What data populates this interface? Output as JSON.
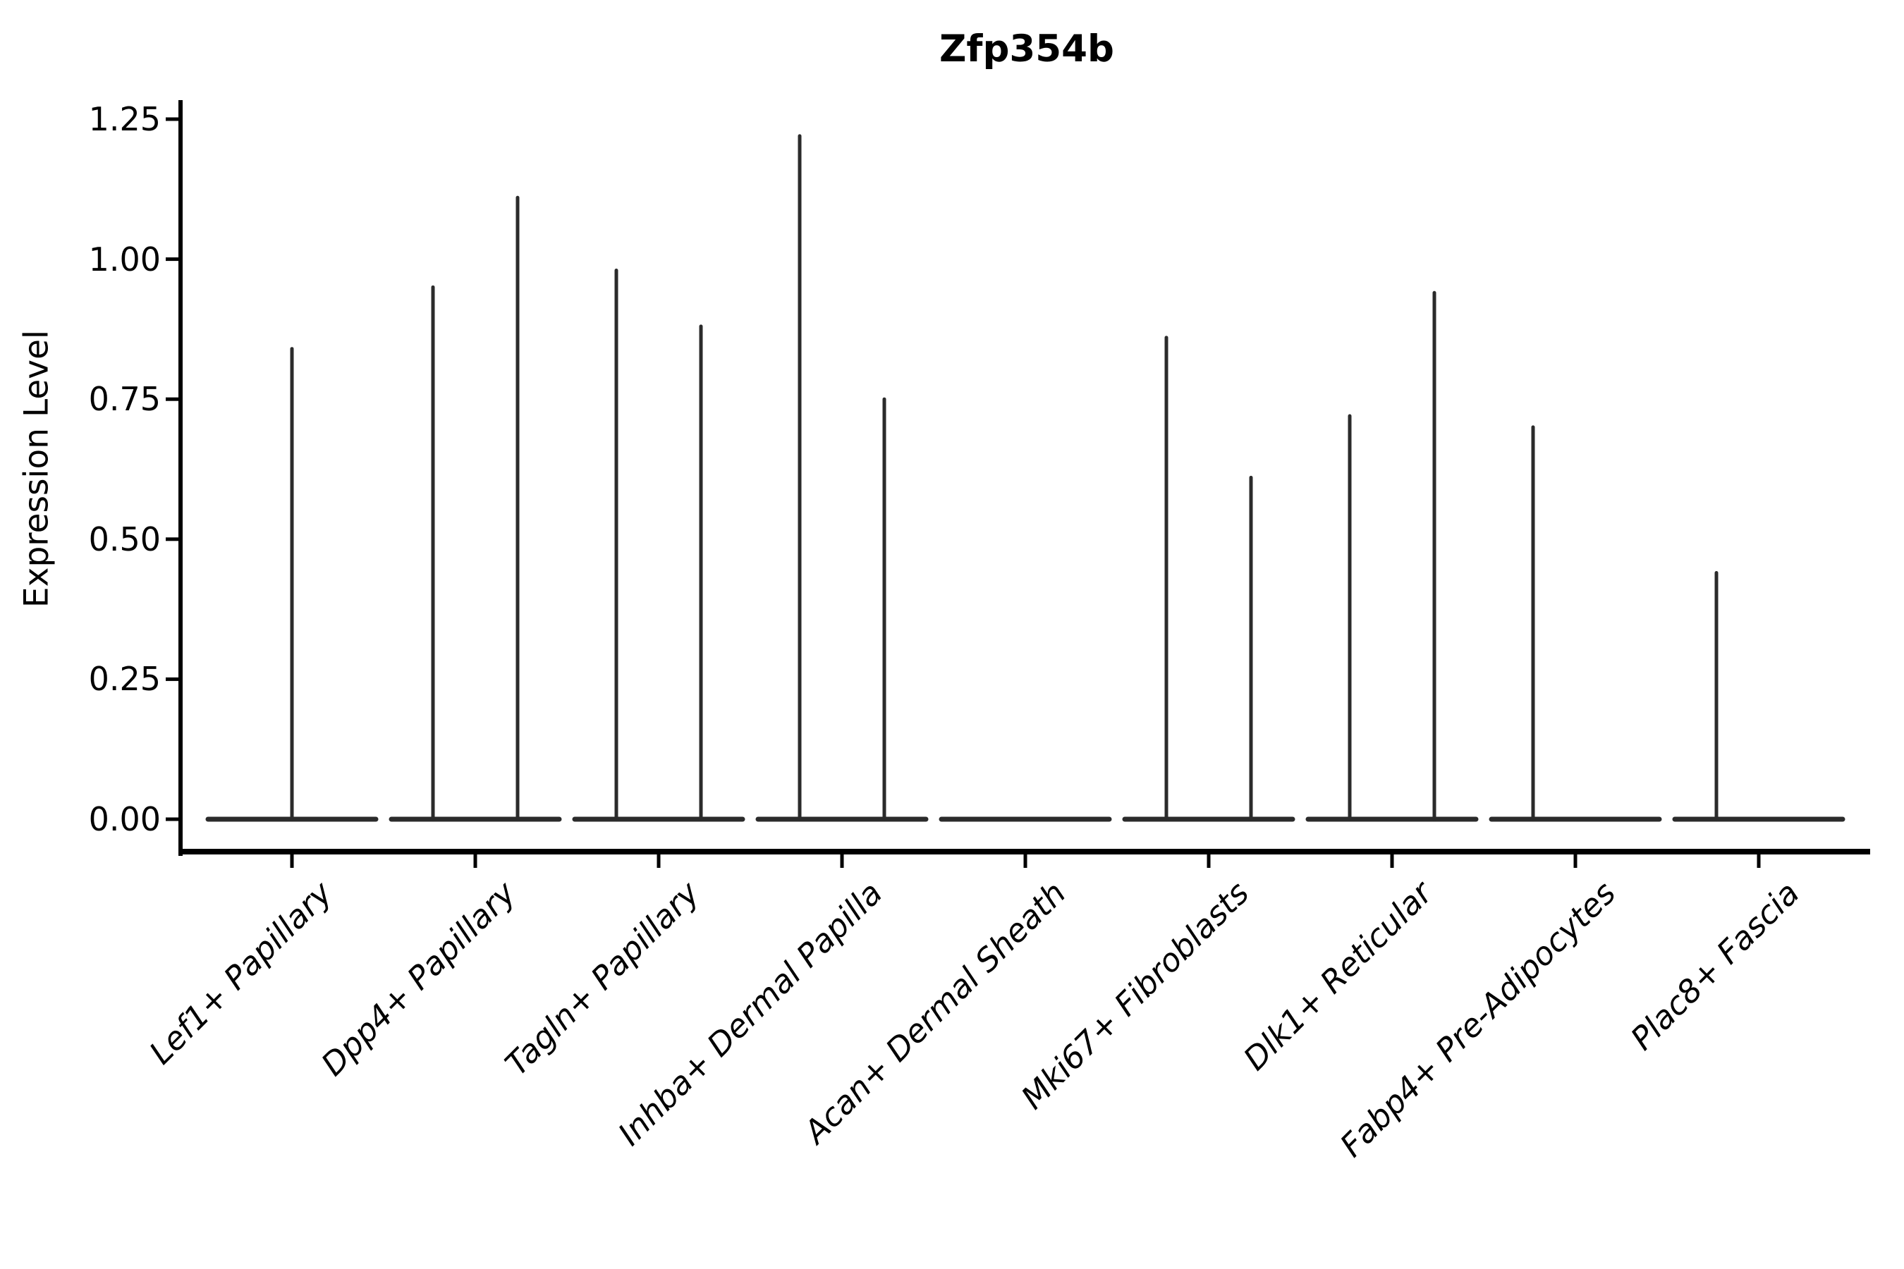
{
  "title": "Zfp354b",
  "y_axis": {
    "label": "Expression Level",
    "tick_labels": [
      "0.00",
      "0.25",
      "0.50",
      "0.75",
      "1.00",
      "1.25"
    ]
  },
  "chart_data": {
    "type": "violin",
    "title": "Zfp354b",
    "xlabel": "",
    "ylabel": "Expression Level",
    "ylim": [
      0,
      1.25
    ],
    "ytick_values": [
      0,
      0.25,
      0.5,
      0.75,
      1.0,
      1.25
    ],
    "ytick_labels": [
      "0.00",
      "0.25",
      "0.50",
      "0.75",
      "1.00",
      "1.25"
    ],
    "grid": false,
    "legend_position": "none",
    "categories": [
      "Lef1+ Papillary",
      "Dpp4+ Papillary",
      "Tagln+ Papillary",
      "Inhba+ Dermal Papilla",
      "Acan+ Dermal Sheath",
      "Mki67+ Fibroblasts",
      "Dlk1+ Reticular",
      "Fabp4+ Pre-Adipocytes",
      "Plac8+ Fascia"
    ],
    "violins": [
      {
        "category": "Lef1+ Papillary",
        "baseline_value": 0,
        "spikes": [
          {
            "offset": 0,
            "max": 0.84
          }
        ]
      },
      {
        "category": "Dpp4+ Papillary",
        "baseline_value": 0,
        "spikes": [
          {
            "offset": -0.23,
            "max": 0.95
          },
          {
            "offset": 0.23,
            "max": 1.11
          }
        ]
      },
      {
        "category": "Tagln+ Papillary",
        "baseline_value": 0,
        "spikes": [
          {
            "offset": -0.23,
            "max": 0.98
          },
          {
            "offset": 0.23,
            "max": 0.88
          }
        ]
      },
      {
        "category": "Inhba+ Dermal Papilla",
        "baseline_value": 0,
        "spikes": [
          {
            "offset": -0.23,
            "max": 1.22
          },
          {
            "offset": 0.23,
            "max": 0.75
          }
        ]
      },
      {
        "category": "Acan+ Dermal Sheath",
        "baseline_value": 0,
        "spikes": []
      },
      {
        "category": "Mki67+ Fibroblasts",
        "baseline_value": 0,
        "spikes": [
          {
            "offset": -0.23,
            "max": 0.86
          },
          {
            "offset": 0.23,
            "max": 0.61
          }
        ]
      },
      {
        "category": "Dlk1+ Reticular",
        "baseline_value": 0,
        "spikes": [
          {
            "offset": -0.23,
            "max": 0.72
          },
          {
            "offset": 0.23,
            "max": 0.94
          }
        ]
      },
      {
        "category": "Fabp4+ Pre-Adipocytes",
        "baseline_value": 0,
        "spikes": [
          {
            "offset": -0.23,
            "max": 0.7
          }
        ]
      },
      {
        "category": "Plac8+ Fascia",
        "baseline_value": 0,
        "spikes": [
          {
            "offset": -0.23,
            "max": 0.44
          }
        ]
      }
    ],
    "colors": {
      "violin_line": "#2b2b2b",
      "spine": "#000000",
      "text": "#000000",
      "background": "#ffffff"
    }
  }
}
